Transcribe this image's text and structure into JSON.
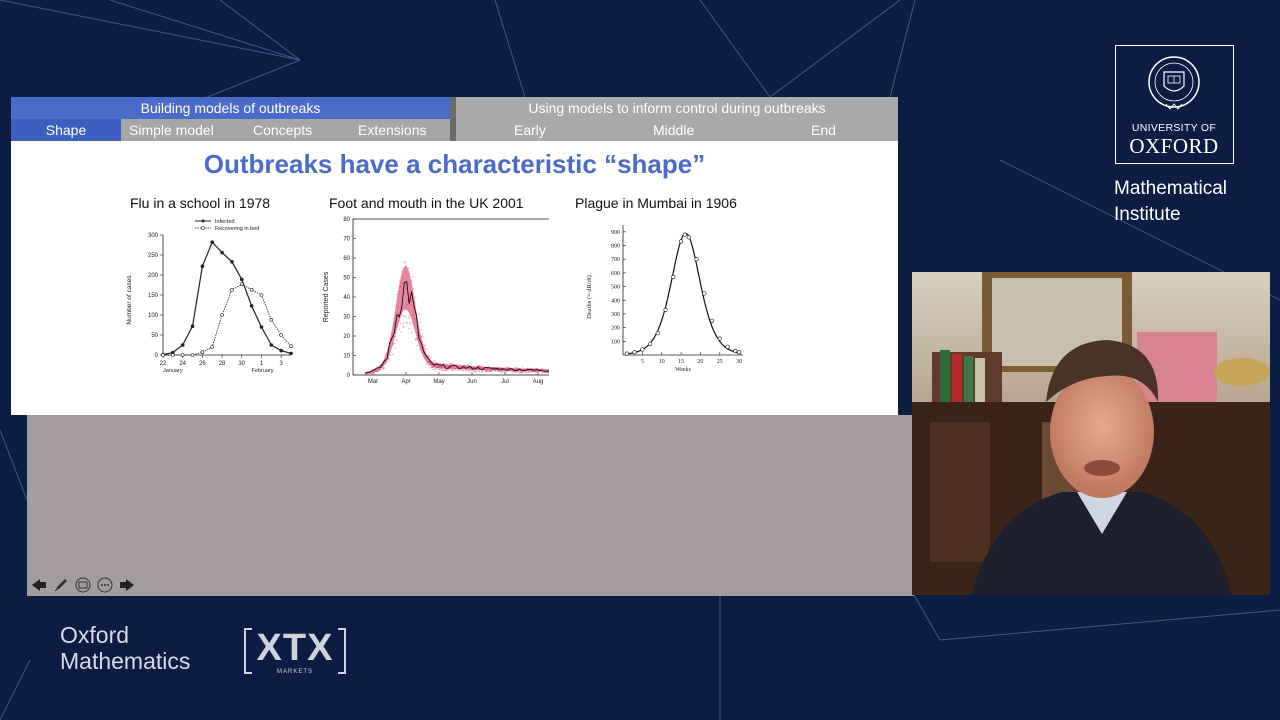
{
  "nav": {
    "section_left": "Building models of outbreaks",
    "section_right": "Using models to inform control during outbreaks",
    "left_items": [
      "Shape",
      "Simple model",
      "Concepts",
      "Extensions"
    ],
    "right_items": [
      "Early",
      "Middle",
      "End"
    ],
    "active_item": "Shape"
  },
  "slide": {
    "title": "Outbreaks have a characteristic “shape”",
    "figures": [
      {
        "title": "Flu in a school in 1978",
        "ylabel": "Number of cases",
        "yticks": [
          "300",
          "250",
          "200",
          "150",
          "100",
          "50",
          "0"
        ],
        "xticks": [
          "22",
          "24",
          "26",
          "28",
          "30",
          "1",
          "3"
        ],
        "xsub": [
          "January",
          "February"
        ],
        "legend": [
          "Infected",
          "Recovering in bed"
        ]
      },
      {
        "title": "Foot and mouth in the UK 2001",
        "ylabel": "Reported Cases",
        "yticks": [
          "80",
          "70",
          "60",
          "50",
          "40",
          "30",
          "20",
          "10",
          "0"
        ],
        "xticks": [
          "Mar",
          "Apr",
          "May",
          "Jun",
          "Jul",
          "Aug"
        ]
      },
      {
        "title": "Plague in Mumbai in 1906",
        "ylabel": "Deaths (≈ dR/dt)",
        "yticks": [
          "900",
          "800",
          "700",
          "600",
          "500",
          "400",
          "300",
          "200",
          "100"
        ],
        "xticks": [
          "5",
          "10",
          "15",
          "20",
          "25",
          "30"
        ],
        "xlabel": "Weeks"
      }
    ]
  },
  "chart_data": [
    {
      "type": "line",
      "title": "Flu in a school in 1978",
      "ylabel": "Number of cases",
      "ylim": [
        0,
        300
      ],
      "x": [
        22,
        23,
        24,
        25,
        26,
        27,
        28,
        29,
        30,
        31,
        32,
        33,
        34,
        35
      ],
      "series": [
        {
          "name": "Infected",
          "values": [
            1,
            6,
            25,
            72,
            222,
            282,
            256,
            233,
            189,
            123,
            70,
            25,
            11,
            4
          ]
        },
        {
          "name": "Recovering in bed",
          "values": [
            0,
            0,
            0,
            0,
            7,
            20,
            100,
            163,
            177,
            163,
            150,
            88,
            50,
            22
          ]
        }
      ]
    },
    {
      "type": "line",
      "title": "Foot and mouth in the UK 2001",
      "ylabel": "Reported Cases",
      "ylim": [
        0,
        80
      ],
      "categories": [
        "Mar",
        "Apr",
        "May",
        "Jun",
        "Jul",
        "Aug"
      ],
      "series": [
        {
          "values": [
            5,
            45,
            12,
            8,
            6,
            4
          ]
        }
      ]
    },
    {
      "type": "line",
      "title": "Plague in Mumbai in 1906",
      "xlabel": "Weeks",
      "ylabel": "Deaths (≈ dR/dt)",
      "ylim": [
        0,
        900
      ],
      "x": [
        1,
        3,
        5,
        7,
        9,
        11,
        13,
        15,
        16,
        17,
        19,
        21,
        23,
        25,
        27,
        29,
        30
      ],
      "series": [
        {
          "values": [
            10,
            20,
            40,
            80,
            160,
            330,
            570,
            830,
            880,
            860,
            700,
            450,
            250,
            120,
            60,
            30,
            20
          ]
        }
      ]
    }
  ],
  "toolbar": {
    "icons": [
      "arrow-left-icon",
      "pen-icon",
      "screen-icon",
      "more-icon",
      "arrow-right-icon"
    ]
  },
  "branding": {
    "university_of": "UNIVERSITY OF",
    "oxford": "OXFORD",
    "institute_line1": "Mathematical",
    "institute_line2": "Institute",
    "oxmath_line1": "Oxford",
    "oxmath_line2": "Mathematics",
    "xtx": "XTX",
    "markets": "MARKETS"
  },
  "colors": {
    "background": "#0c1d44",
    "nav_active": "#3d5fbf",
    "nav_grey": "#a6a6a6",
    "title_blue": "#4a6bc7",
    "fmd_magenta": "#e0509a"
  }
}
